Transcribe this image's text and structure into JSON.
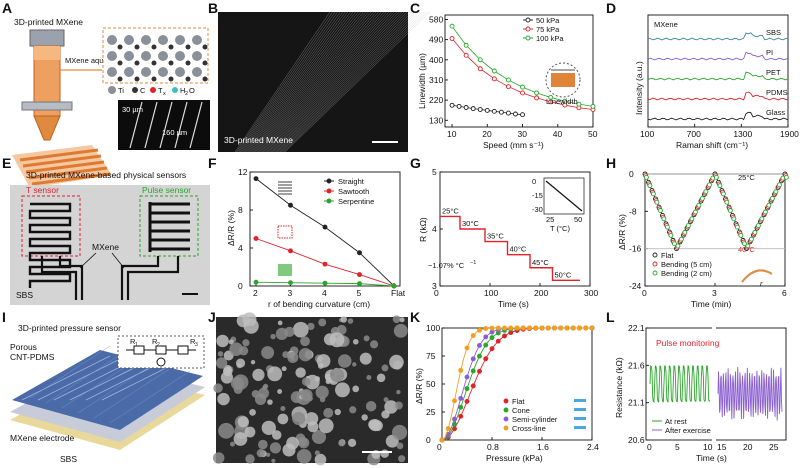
{
  "panels": {
    "A": {
      "label": "A",
      "title": "3D-printed MXene",
      "ink_label": "MXene aqueous ink",
      "legend": [
        "Ti",
        "C",
        "T",
        "x",
        "H",
        "2",
        "O"
      ],
      "scale1": "30 µm",
      "scale2": "160 µm"
    },
    "B": {
      "label": "B",
      "caption": "3D-printed MXene"
    },
    "C": {
      "label": "C",
      "inset": "Linewidth"
    },
    "D": {
      "label": "D"
    },
    "E": {
      "label": "E",
      "title": "3D-printed MXene-based physical sensors",
      "t_sensor": "T sensor",
      "pulse_sensor": "Pulse sensor",
      "mxene": "MXene",
      "substrate": "SBS"
    },
    "F": {
      "label": "F"
    },
    "G": {
      "label": "G",
      "coef": "−1.07% °C",
      "coef_sup": "−1",
      "temps": [
        "25°C",
        "30°C",
        "35°C",
        "40°C",
        "45°C",
        "50°C"
      ]
    },
    "H": {
      "label": "H",
      "t_high": "25°C",
      "t_low": "40°C",
      "r": "r"
    },
    "I": {
      "label": "I",
      "title": "3D-printed pressure sensor",
      "porous": "Porous",
      "cntpdms": "CNT-PDMS",
      "electrode": "MXene electrode",
      "sbs": "SBS",
      "r1": "R",
      "r2": "R",
      "r3": "R",
      "r1s": "1",
      "r2s": "2",
      "r3s": "3"
    },
    "J": {
      "label": "J"
    },
    "K": {
      "label": "K"
    },
    "L": {
      "label": "L",
      "title": "Pulse monitoring"
    }
  },
  "chart_data": [
    {
      "id": "C",
      "type": "scatter",
      "xlabel": "Speed (mm s⁻¹)",
      "ylabel": "Linewidth (µm)",
      "xlim": [
        8,
        50
      ],
      "ylim": [
        100,
        600
      ],
      "xticks": [
        "10",
        "20",
        "30",
        "40",
        "50"
      ],
      "yticks": [
        "130",
        "220",
        "310",
        "400",
        "490",
        "580"
      ],
      "series": [
        {
          "name": "50 kPa",
          "color": "#222222",
          "x": [
            10,
            12,
            14,
            16,
            18,
            20,
            22,
            24,
            26,
            28,
            30
          ],
          "values": [
            197,
            192,
            187,
            182,
            178,
            174,
            170,
            166,
            162,
            158,
            155
          ]
        },
        {
          "name": "75 kPa",
          "color": "#e0232a",
          "x": [
            10,
            14,
            18,
            22,
            26,
            30,
            34,
            38,
            42,
            46,
            50
          ],
          "values": [
            495,
            420,
            360,
            315,
            280,
            252,
            230,
            212,
            198,
            186,
            178
          ]
        },
        {
          "name": "100 kPa",
          "color": "#2aa62a",
          "x": [
            10,
            14,
            18,
            22,
            26,
            30,
            34,
            38,
            42,
            46,
            50
          ],
          "values": [
            550,
            465,
            400,
            350,
            310,
            278,
            252,
            232,
            215,
            202,
            192
          ]
        }
      ]
    },
    {
      "id": "D",
      "type": "line",
      "xlabel": "Raman shift (cm⁻¹)",
      "ylabel": "Intensity (a.u.)",
      "xlim": [
        100,
        1900
      ],
      "xticks": [
        "100",
        "700",
        "1300",
        "1900"
      ],
      "series": [
        {
          "name": "Glass",
          "color": "#222222",
          "offset": 0
        },
        {
          "name": "PDMS",
          "color": "#e0232a",
          "offset": 1
        },
        {
          "name": "PET",
          "color": "#2aa62a",
          "offset": 2
        },
        {
          "name": "PI",
          "color": "#8a5fd0",
          "offset": 3
        },
        {
          "name": "SBS",
          "color": "#3a8a9a",
          "offset": 4
        }
      ],
      "label_mxene": "MXene"
    },
    {
      "id": "F",
      "type": "line",
      "xlabel": "r of bending curvature (cm)",
      "ylabel": "ΔR/R (%)",
      "ylim": [
        0,
        12
      ],
      "categories": [
        "2",
        "3",
        "4",
        "5",
        "Flat"
      ],
      "yticks": [
        "0",
        "4",
        "8",
        "12"
      ],
      "series": [
        {
          "name": "Straight",
          "color": "#222222",
          "values": [
            11.3,
            8.5,
            6.2,
            3.5,
            0
          ]
        },
        {
          "name": "Sawtooth",
          "color": "#e0232a",
          "values": [
            5.0,
            3.7,
            2.3,
            1.2,
            0
          ]
        },
        {
          "name": "Serpentine",
          "color": "#2aa62a",
          "values": [
            0.4,
            0.35,
            0.3,
            0.25,
            0
          ]
        }
      ]
    },
    {
      "id": "G",
      "type": "line",
      "xlabel": "Time (s)",
      "ylabel": "R (kΩ)",
      "xlim": [
        0,
        300
      ],
      "ylim": [
        3,
        5
      ],
      "xticks": [
        "0",
        "100",
        "200",
        "300"
      ],
      "yticks": [
        "3",
        "4",
        "5"
      ],
      "series": [
        {
          "name": "R",
          "color": "#e0232a",
          "x": [
            0,
            40,
            40,
            90,
            90,
            135,
            135,
            180,
            180,
            225,
            225,
            280
          ],
          "values": [
            4.22,
            4.22,
            4.0,
            4.0,
            3.78,
            3.78,
            3.55,
            3.55,
            3.32,
            3.32,
            3.1,
            3.1
          ]
        }
      ],
      "inset": {
        "xlabel": "T (°C)",
        "ylabel": "ΔR/R (%)",
        "xticks": [
          "25",
          "50"
        ],
        "yticks": [
          "0",
          "-15",
          "-30"
        ]
      }
    },
    {
      "id": "H",
      "type": "line",
      "xlabel": "Time (min)",
      "ylabel": "ΔR/R (%)",
      "xlim": [
        0,
        6
      ],
      "ylim": [
        -24,
        0
      ],
      "xticks": [
        "0",
        "3",
        "6"
      ],
      "yticks": [
        "0",
        "-8",
        "-16",
        "-24"
      ],
      "series": [
        {
          "name": "Flat",
          "color": "#222222"
        },
        {
          "name": "Bending (5 cm)",
          "color": "#e0232a"
        },
        {
          "name": "Bending (2 cm)",
          "color": "#2aa62a"
        }
      ]
    },
    {
      "id": "K",
      "type": "line",
      "xlabel": "Pressure (kPa)",
      "ylabel": "ΔR/R (%)",
      "xlim": [
        0,
        2.4
      ],
      "ylim": [
        0,
        100
      ],
      "xticks": [
        "0",
        "0.8",
        "1.6",
        "2.4"
      ],
      "yticks": [
        "0",
        "25",
        "50",
        "75",
        "100"
      ],
      "series": [
        {
          "name": "Flat",
          "color": "#e0232a",
          "k": 2.2
        },
        {
          "name": "Cone",
          "color": "#2aa62a",
          "k": 3.2
        },
        {
          "name": "Semi-cylinder",
          "color": "#8a5fd0",
          "k": 4.3
        },
        {
          "name": "Cross-line",
          "color": "#f0a020",
          "k": 9
        }
      ]
    },
    {
      "id": "L",
      "type": "line",
      "xlabel": "Time (s)",
      "ylabel": "Resistance (kΩ)",
      "ylim": [
        20.6,
        22.1
      ],
      "xticks_left": [
        "0",
        "5",
        "10"
      ],
      "xticks_right": [
        "15",
        "20",
        "25"
      ],
      "yticks": [
        "20.6",
        "21.1",
        "21.6",
        "22.1"
      ],
      "series": [
        {
          "name": "At rest",
          "color": "#2aa62a"
        },
        {
          "name": "After exercise",
          "color": "#8a5fd0"
        }
      ]
    }
  ]
}
